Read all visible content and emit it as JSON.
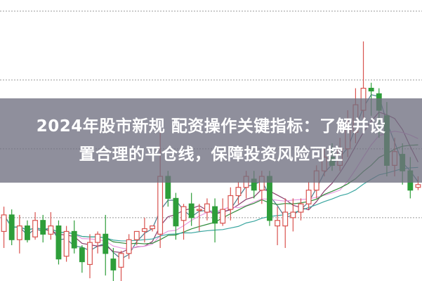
{
  "headline": {
    "line1": "2024年股市新规 配资操作关键指标：了解并设",
    "line2": "置合理的平仓线，保障投资风险可控"
  },
  "chart_data": {
    "type": "candlestick",
    "title": "",
    "xlabel": "",
    "ylabel": "",
    "ylim": [
      0,
      100
    ],
    "grid": true,
    "gridlines": [
      23,
      48,
      73,
      98
    ],
    "colors": {
      "up": "#d9534f",
      "down": "#2e9e3a",
      "ma_short": "#4a7a8c",
      "ma_mid": "#8c3f6e",
      "ma_long": "#2f8a3a",
      "ma_extra": "#e89ae0",
      "ma_slowest": "#3aa6a0"
    },
    "candles": [
      [
        18,
        24,
        27,
        12
      ],
      [
        24,
        15,
        26,
        13
      ],
      [
        15,
        20,
        24,
        10
      ],
      [
        20,
        15,
        22,
        14
      ],
      [
        16,
        22,
        25,
        15
      ],
      [
        22,
        17,
        24,
        14
      ],
      [
        17,
        20,
        25,
        15
      ],
      [
        20,
        8,
        22,
        6
      ],
      [
        9,
        18,
        20,
        7
      ],
      [
        18,
        12,
        22,
        10
      ],
      [
        12,
        7,
        13,
        3
      ],
      [
        6,
        14,
        17,
        1
      ],
      [
        14,
        17,
        18,
        10
      ],
      [
        17,
        10,
        24,
        2
      ],
      [
        8,
        4,
        12,
        0
      ],
      [
        5,
        10,
        11,
        0
      ],
      [
        10,
        15,
        17,
        8
      ],
      [
        15,
        18,
        18,
        13
      ],
      [
        18,
        19,
        23,
        14
      ],
      [
        19,
        20,
        20,
        18
      ],
      [
        17,
        38,
        55,
        12
      ],
      [
        38,
        30,
        40,
        27
      ],
      [
        30,
        20,
        32,
        15
      ],
      [
        22,
        27,
        28,
        15
      ],
      [
        28,
        23,
        32,
        20
      ],
      [
        26,
        26,
        28,
        18
      ],
      [
        25,
        28,
        30,
        22
      ],
      [
        27,
        21,
        30,
        14
      ],
      [
        21,
        26,
        30,
        20
      ],
      [
        26,
        31,
        34,
        22
      ],
      [
        31,
        34,
        36,
        28
      ],
      [
        34,
        38,
        40,
        30
      ],
      [
        37,
        33,
        40,
        30
      ],
      [
        33,
        38,
        40,
        28
      ],
      [
        38,
        22,
        40,
        20
      ],
      [
        20,
        22,
        27,
        13
      ],
      [
        20,
        25,
        30,
        12
      ],
      [
        23,
        25,
        30,
        18
      ],
      [
        25,
        28,
        30,
        22
      ],
      [
        28,
        33,
        36,
        26
      ],
      [
        33,
        40,
        42,
        30
      ],
      [
        40,
        45,
        48,
        38
      ],
      [
        45,
        42,
        50,
        40
      ],
      [
        42,
        48,
        52,
        40
      ],
      [
        48,
        55,
        62,
        45
      ],
      [
        54,
        64,
        70,
        50
      ],
      [
        62,
        70,
        87,
        55
      ],
      [
        70,
        69,
        72,
        60
      ],
      [
        68,
        62,
        70,
        52
      ],
      [
        60,
        42,
        65,
        38
      ],
      [
        42,
        47,
        52,
        38
      ],
      [
        46,
        40,
        50,
        35
      ],
      [
        40,
        33,
        45,
        30
      ],
      [
        34,
        35,
        38,
        33
      ]
    ]
  }
}
